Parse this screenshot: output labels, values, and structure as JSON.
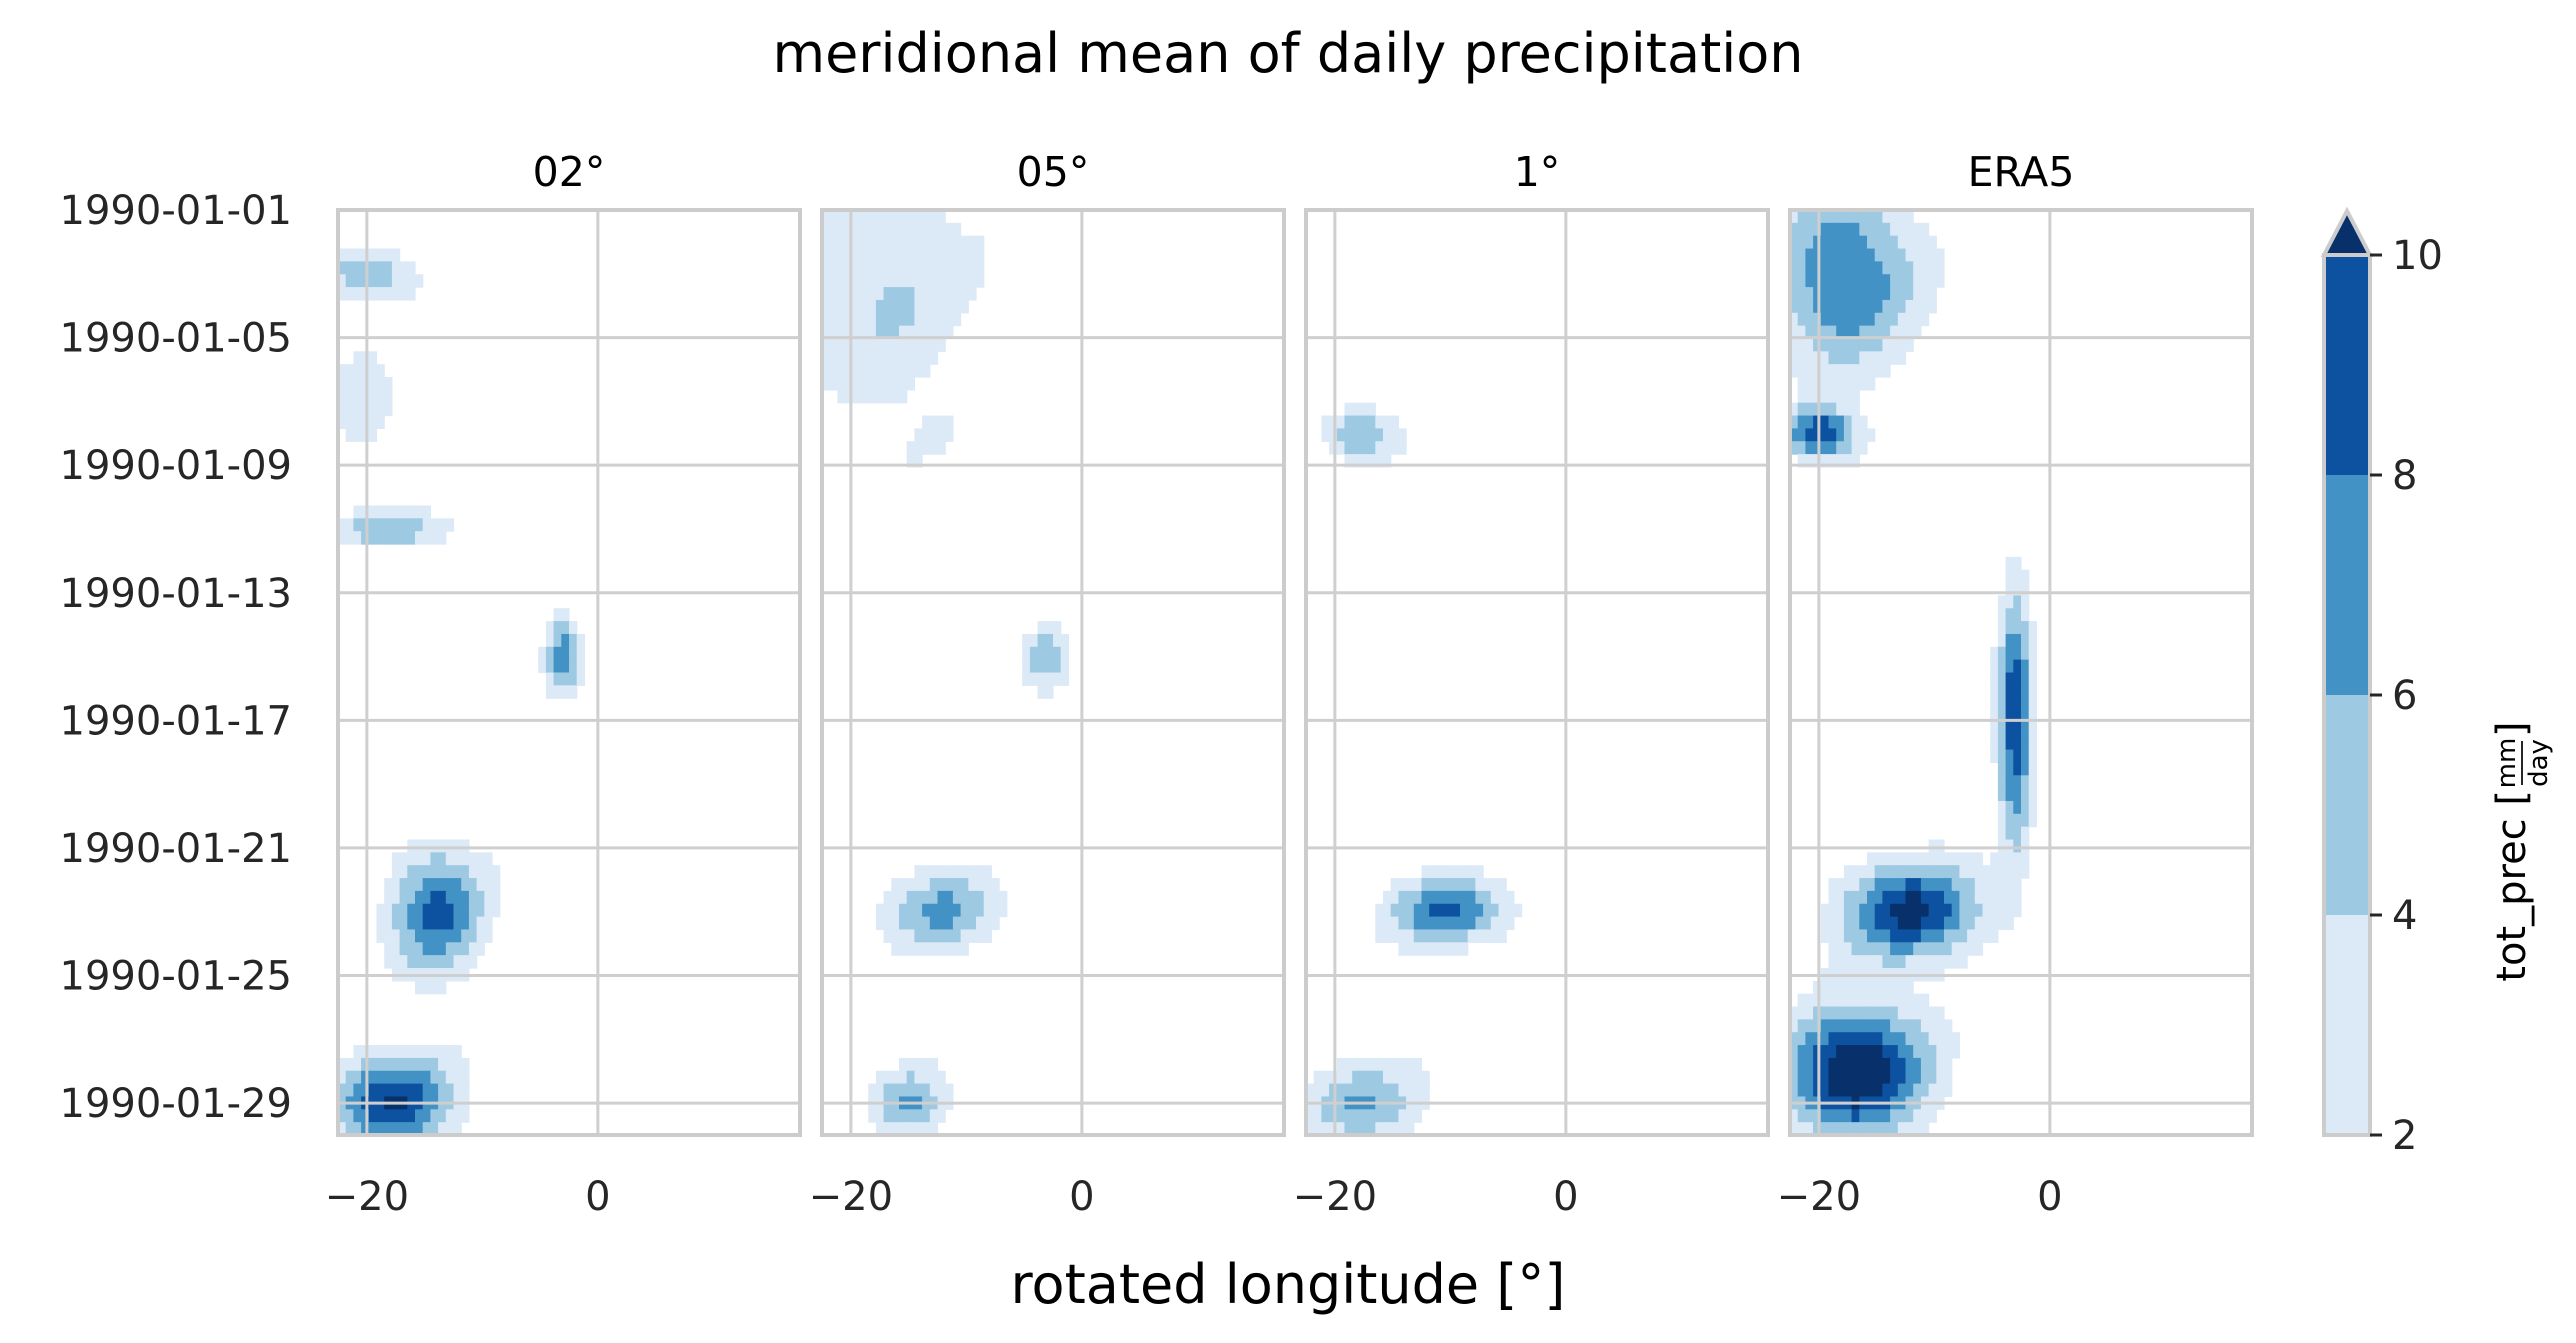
{
  "chart_data": {
    "type": "heatmap",
    "subtype": "filled-contour (Hovmöller)",
    "title": "meridional mean of daily precipitation",
    "xlabel": "rotated longitude [°]",
    "panels": [
      "02°",
      "05°",
      "1°",
      "ERA5"
    ],
    "x_range": [
      -22.5,
      17.5
    ],
    "x_ticks": [
      -20,
      0
    ],
    "x_tick_labels": [
      "−20",
      "0"
    ],
    "y_tick_labels": [
      "1990-01-01",
      "1990-01-05",
      "1990-01-09",
      "1990-01-13",
      "1990-01-17",
      "1990-01-21",
      "1990-01-25",
      "1990-01-29"
    ],
    "y_range": [
      "1990-01-01",
      "1990-01-30"
    ],
    "y_direction": "time increases downward",
    "grid": true,
    "colorbar": {
      "label": "tot_prec [mm/day]",
      "label_parts": {
        "prefix": "tot_prec [",
        "num": "mm",
        "den": "day",
        "suffix": "]"
      },
      "levels": [
        2,
        4,
        6,
        8,
        10
      ],
      "tick_labels": [
        "2",
        "4",
        "6",
        "8",
        "10"
      ],
      "extend": "max",
      "colors": [
        "#dce9f6",
        "#9dc9e2",
        "#4292c6",
        "#0d52a0",
        "#08306b"
      ]
    },
    "contour_line_color": "#3c4a5c",
    "series": [
      {
        "name": "02°",
        "regions": [
          {
            "lon": -20.5,
            "date": "1990-01-07",
            "level": 2,
            "w": 3,
            "h": 1.5
          },
          {
            "lon": -20,
            "date": "1990-01-03",
            "level": 4,
            "w": 4,
            "h": 0.8
          },
          {
            "lon": -18,
            "date": "1990-01-11",
            "level": 4,
            "w": 5,
            "h": 0.6
          },
          {
            "lon": -3,
            "date": "1990-01-15",
            "level": 6,
            "w": 1.5,
            "h": 1.2
          },
          {
            "lon": -14,
            "date": "1990-01-23",
            "level": 6,
            "w": 4,
            "h": 2
          },
          {
            "lon": -18,
            "date": "1990-01-29",
            "level": 8,
            "w": 5,
            "h": 1.5
          }
        ]
      },
      {
        "name": "05°",
        "regions": [
          {
            "lon": -18,
            "date": "1990-01-03",
            "level": 2,
            "w": 8,
            "h": 5
          },
          {
            "lon": -3,
            "date": "1990-01-15",
            "level": 4,
            "w": 2,
            "h": 1
          },
          {
            "lon": -12,
            "date": "1990-01-23",
            "level": 4,
            "w": 5,
            "h": 1.2
          },
          {
            "lon": -15,
            "date": "1990-01-29",
            "level": 4,
            "w": 3,
            "h": 1
          }
        ]
      },
      {
        "name": "1°",
        "regions": [
          {
            "lon": -18,
            "date": "1990-01-08",
            "level": 4,
            "w": 3,
            "h": 0.8
          },
          {
            "lon": -10,
            "date": "1990-01-23",
            "level": 6,
            "w": 5,
            "h": 1
          },
          {
            "lon": -18,
            "date": "1990-01-29",
            "level": 4,
            "w": 5,
            "h": 1.2
          }
        ]
      },
      {
        "name": "ERA5",
        "regions": [
          {
            "lon": -18,
            "date": "1990-01-03",
            "level": 6,
            "w": 6,
            "h": 3
          },
          {
            "lon": -20,
            "date": "1990-01-08",
            "level": 8,
            "w": 3,
            "h": 0.8
          },
          {
            "lon": -3,
            "date": "1990-01-17",
            "level": 8,
            "w": 1.5,
            "h": 4
          },
          {
            "lon": -12,
            "date": "1990-01-23",
            "level": 8,
            "w": 6,
            "h": 1.5
          },
          {
            "lon": -17,
            "date": "1990-01-28",
            "level": 10,
            "w": 6,
            "h": 2
          }
        ]
      }
    ]
  }
}
